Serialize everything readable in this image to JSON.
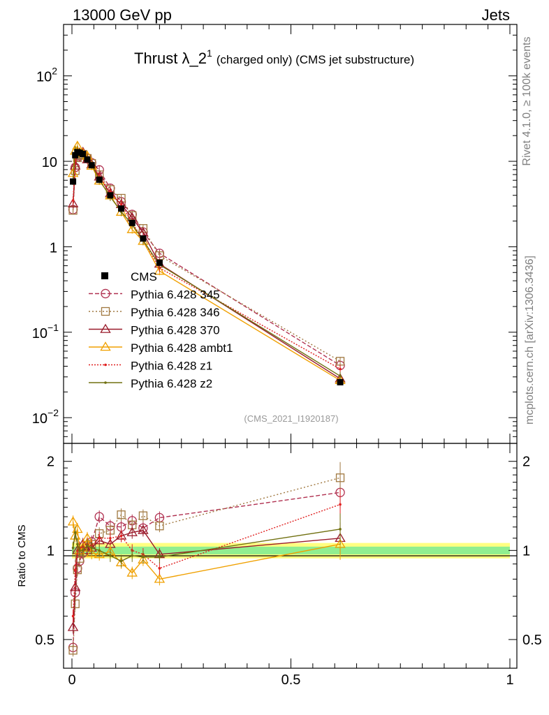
{
  "header": {
    "left": "13000 GeV pp",
    "right": "Jets"
  },
  "side_labels": {
    "top": "Rivet 4.1.0, ≥ 100k events",
    "bottom": "mcplots.cern.ch [arXiv:1306.3436]"
  },
  "chart_data": {
    "type": "line",
    "title_main": "Thrust λ_2",
    "title_sup": "1",
    "title_rest": "(charged only) (CMS jet substructure)",
    "reference": "(CMS_2021_I1920187)",
    "ylabel_ratio": "Ratio to CMS",
    "xlim": [
      0,
      1
    ],
    "ylim_main": [
      0.005,
      400
    ],
    "ylim_ratio": [
      0.4,
      2.3
    ],
    "x_ticks": [
      {
        "value": 0,
        "label": "0"
      },
      {
        "value": 0.5,
        "label": "0.5"
      },
      {
        "value": 1,
        "label": "1"
      }
    ],
    "y_ticks_main": [
      {
        "value": 100,
        "base": "10",
        "exp": "2"
      },
      {
        "value": 10,
        "base": "10",
        "exp": ""
      },
      {
        "value": 1,
        "base": "1",
        "exp": ""
      },
      {
        "value": 0.1,
        "base": "10",
        "exp": "−1"
      },
      {
        "value": 0.01,
        "base": "10",
        "exp": "−2"
      }
    ],
    "y_ticks_ratio": [
      {
        "value": 0.5,
        "label": "0.5"
      },
      {
        "value": 1,
        "label": "1"
      },
      {
        "value": 2,
        "label": "2"
      }
    ],
    "x": [
      0.0025,
      0.0075,
      0.0125,
      0.0175,
      0.025,
      0.035,
      0.045,
      0.0625,
      0.0875,
      0.1125,
      0.1375,
      0.1625,
      0.2,
      0.6125
    ],
    "data": {
      "name": "CMS",
      "values": [
        5.8,
        11.8,
        12.8,
        12.6,
        12.2,
        10.5,
        9.0,
        6.1,
        4.0,
        2.8,
        1.9,
        1.25,
        0.65,
        0.026
      ]
    },
    "ratio_band": {
      "inner": 0.03,
      "outer": 0.06
    },
    "series": [
      {
        "name": "Pythia 6.428 345",
        "color": "#b03050",
        "dash": "6,3",
        "marker": "circle",
        "ratios": [
          0.47,
          0.72,
          0.87,
          0.92,
          0.98,
          1.04,
          1.07,
          1.3,
          1.21,
          1.2,
          1.26,
          1.19,
          1.29,
          1.57
        ]
      },
      {
        "name": "Pythia 6.428 346",
        "color": "#a07840",
        "dash": "2,3",
        "marker": "square",
        "ratios": [
          0.46,
          0.66,
          0.86,
          0.94,
          0.99,
          1.03,
          1.05,
          1.14,
          1.17,
          1.32,
          1.22,
          1.31,
          1.21,
          1.76
        ]
      },
      {
        "name": "Pythia 6.428 370",
        "color": "#991a2a",
        "dash": "",
        "marker": "triangle",
        "ratios": [
          0.55,
          0.75,
          1.0,
          1.0,
          1.05,
          1.0,
          1.02,
          1.08,
          1.05,
          1.12,
          1.15,
          1.17,
          0.97,
          1.1
        ]
      },
      {
        "name": "Pythia 6.428 ambt1",
        "color": "#f0a000",
        "dash": "",
        "marker": "triangle",
        "ratios": [
          1.25,
          1.12,
          1.18,
          1.0,
          1.02,
          1.1,
          0.98,
          0.97,
          0.99,
          0.91,
          0.84,
          0.93,
          0.8,
          1.05
        ]
      },
      {
        "name": "Pythia 6.428 z1",
        "color": "#e02020",
        "dash": "2,2",
        "marker": "dot",
        "ratios": [
          0.6,
          0.86,
          1.0,
          1.02,
          1.03,
          1.05,
          1.04,
          1.1,
          1.1,
          1.12,
          1.0,
          0.97,
          0.87,
          1.43
        ]
      },
      {
        "name": "Pythia 6.428 z2",
        "color": "#707010",
        "dash": "",
        "marker": "dot",
        "ratios": [
          1.02,
          1.15,
          1.05,
          1.0,
          1.0,
          1.04,
          1.02,
          1.0,
          0.96,
          0.92,
          0.96,
          0.95,
          0.95,
          1.18
        ]
      }
    ]
  }
}
